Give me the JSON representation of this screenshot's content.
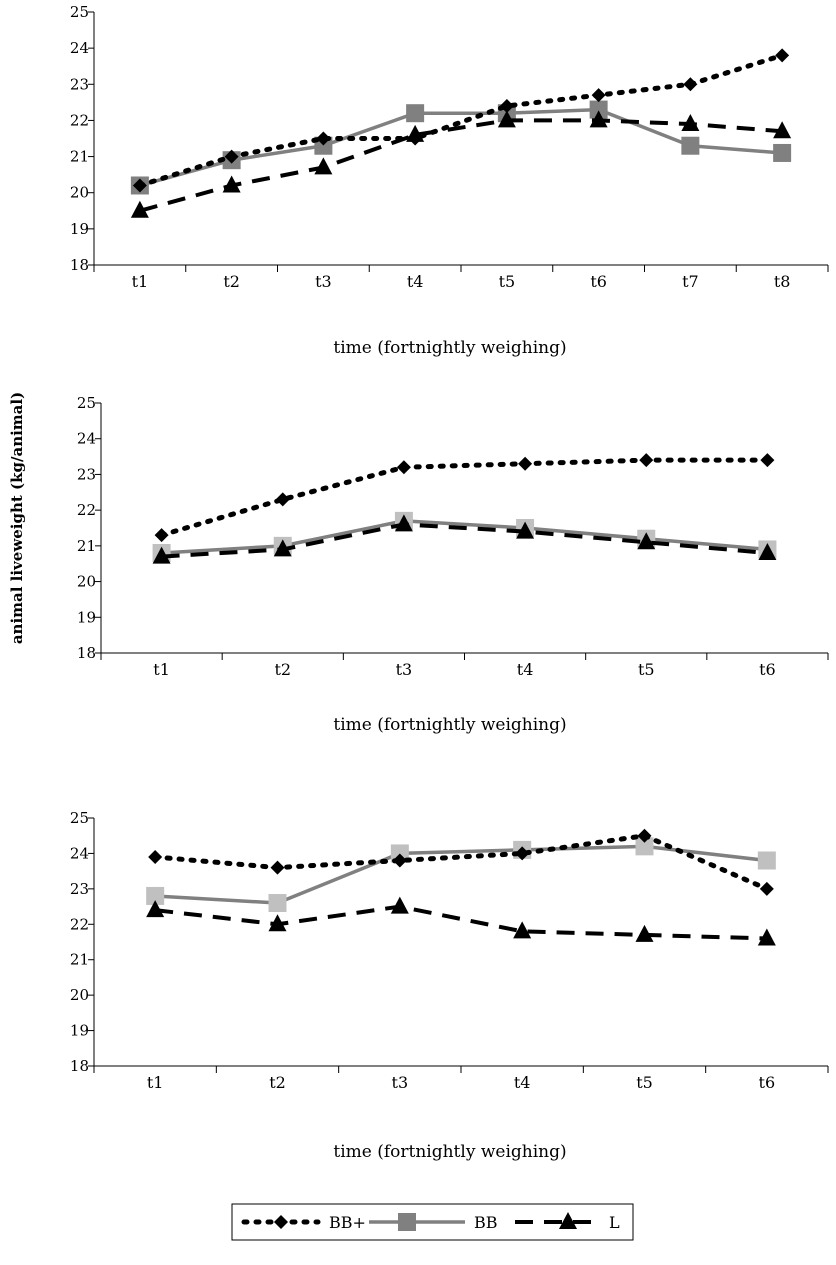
{
  "figure": {
    "ylabel": "animal liveweight (kg/animal)"
  },
  "legend": {
    "items": [
      {
        "label": "BB+",
        "style": "dotted",
        "marker": "diamond",
        "color": "#000000"
      },
      {
        "label": "BB",
        "style": "solid",
        "marker": "square",
        "color": "#808080"
      },
      {
        "label": "L",
        "style": "dashed",
        "marker": "triangle",
        "color": "#000000"
      }
    ]
  },
  "chart_data": [
    {
      "type": "line",
      "xlabel": "time (fortnightly weighing)",
      "categories": [
        "t1",
        "t2",
        "t3",
        "t4",
        "t5",
        "t6",
        "t7",
        "t8"
      ],
      "ylim": [
        18,
        25
      ],
      "yticks": [
        "18",
        "19",
        "20",
        "21",
        "22",
        "23",
        "24",
        "25"
      ],
      "series": [
        {
          "name": "BB+",
          "values": [
            20.2,
            21.0,
            21.5,
            21.5,
            22.4,
            22.7,
            23.0,
            23.8
          ]
        },
        {
          "name": "BB",
          "values": [
            20.2,
            20.9,
            21.3,
            22.2,
            22.2,
            22.3,
            21.3,
            21.1
          ]
        },
        {
          "name": "L",
          "values": [
            19.5,
            20.2,
            20.7,
            21.6,
            22.0,
            22.0,
            21.9,
            21.7
          ]
        }
      ]
    },
    {
      "type": "line",
      "xlabel": "time (fortnightly weighing)",
      "categories": [
        "t1",
        "t2",
        "t3",
        "t4",
        "t5",
        "t6"
      ],
      "ylim": [
        18,
        25
      ],
      "yticks": [
        "18",
        "19",
        "20",
        "21",
        "22",
        "23",
        "24",
        "25"
      ],
      "series": [
        {
          "name": "BB+",
          "values": [
            21.3,
            22.3,
            23.2,
            23.3,
            23.4,
            23.4
          ]
        },
        {
          "name": "BB",
          "values": [
            20.8,
            21.0,
            21.7,
            21.5,
            21.2,
            20.9
          ]
        },
        {
          "name": "L",
          "values": [
            20.7,
            20.9,
            21.6,
            21.4,
            21.1,
            20.8
          ]
        }
      ]
    },
    {
      "type": "line",
      "xlabel": "time (fortnightly weighing)",
      "categories": [
        "t1",
        "t2",
        "t3",
        "t4",
        "t5",
        "t6"
      ],
      "ylim": [
        18,
        25
      ],
      "yticks": [
        "18",
        "19",
        "20",
        "21",
        "22",
        "23",
        "24",
        "25"
      ],
      "series": [
        {
          "name": "BB+",
          "values": [
            23.9,
            23.6,
            23.8,
            24.0,
            24.5,
            23.0
          ]
        },
        {
          "name": "BB",
          "values": [
            22.8,
            22.6,
            24.0,
            24.1,
            24.2,
            23.8
          ]
        },
        {
          "name": "L",
          "values": [
            22.4,
            22.0,
            22.5,
            21.8,
            21.7,
            21.6
          ]
        }
      ]
    }
  ]
}
